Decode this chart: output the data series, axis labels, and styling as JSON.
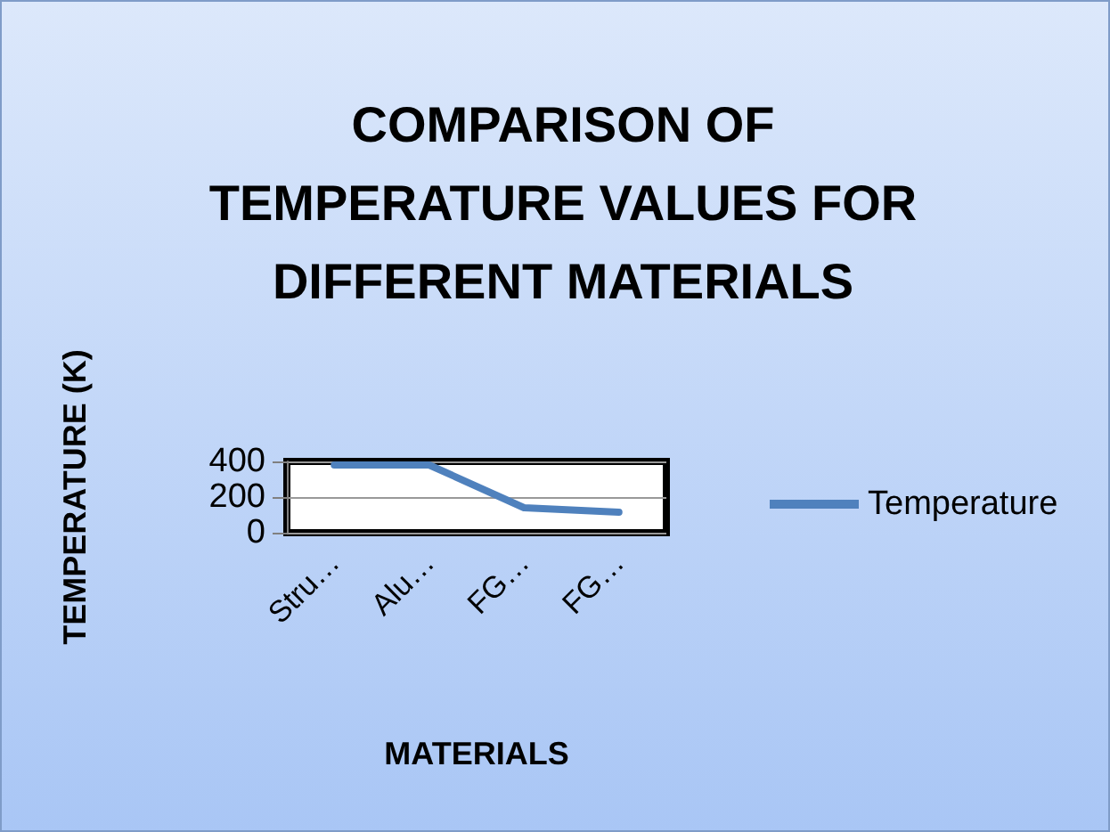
{
  "chart_data": {
    "type": "line",
    "title": "COMPARISON OF\nTEMPERATURE VALUES FOR\nDIFFERENT MATERIALS",
    "xlabel": "MATERIALS",
    "ylabel": "TEMPERATURE (K)",
    "categories": [
      "Stru…",
      "Alu…",
      "FG…",
      "FG…"
    ],
    "series": [
      {
        "name": "Temperature",
        "color": "#4f81bd",
        "values": [
          380,
          380,
          140,
          115
        ]
      }
    ],
    "ylim": [
      0,
      400
    ],
    "yticks": [
      0,
      200,
      400
    ],
    "grid": "y",
    "legend": "right",
    "marker": "none",
    "line_style": "solid"
  }
}
